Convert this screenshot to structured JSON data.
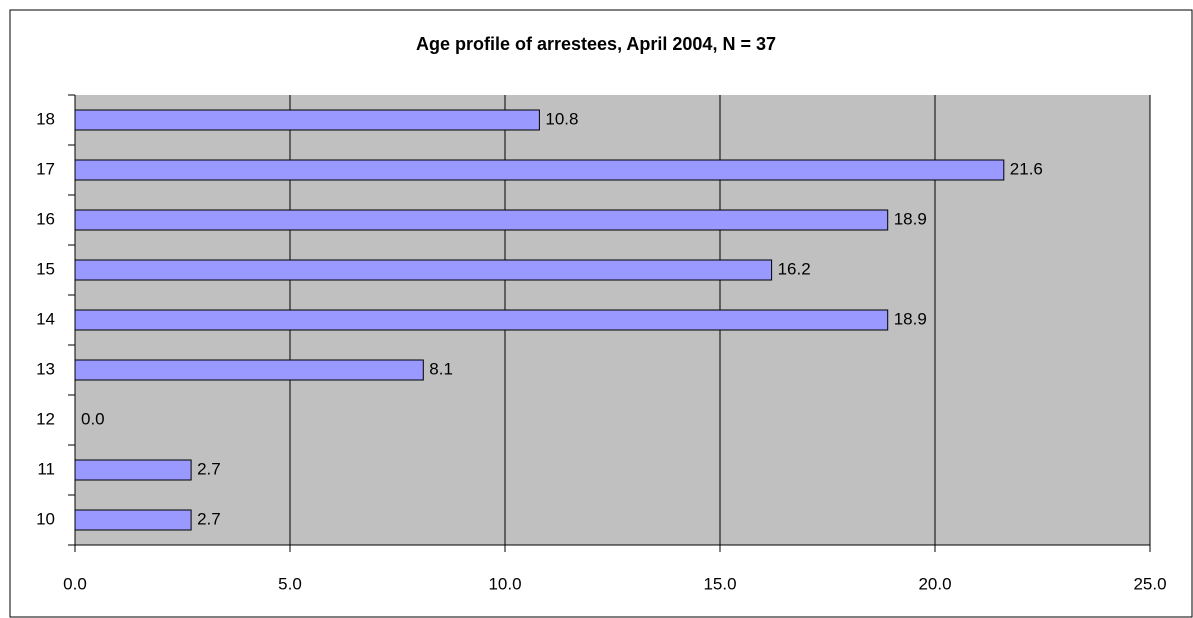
{
  "chart_data": {
    "type": "bar",
    "orientation": "horizontal",
    "title": "Age profile of arrestees, April 2004, N = 37",
    "categories": [
      "10",
      "11",
      "12",
      "13",
      "14",
      "15",
      "16",
      "17",
      "18"
    ],
    "values": [
      2.7,
      2.7,
      0,
      8.1,
      18.9,
      16.2,
      18.9,
      21.6,
      10.8
    ],
    "value_labels": [
      "2.7",
      "2.7",
      "0.0",
      "8.1",
      "18.9",
      "16.2",
      "18.9",
      "21.6",
      "10.8"
    ],
    "color": "#9999ff",
    "xlim": [
      0,
      25
    ],
    "xticks": [
      {
        "value": 0,
        "label": "0.0"
      },
      {
        "value": 5,
        "label": "5.0"
      },
      {
        "value": 10,
        "label": "10.0"
      },
      {
        "value": 15,
        "label": "15.0"
      },
      {
        "value": 20,
        "label": "20.0"
      },
      {
        "value": 25,
        "label": "25.0"
      }
    ],
    "grid": true
  }
}
